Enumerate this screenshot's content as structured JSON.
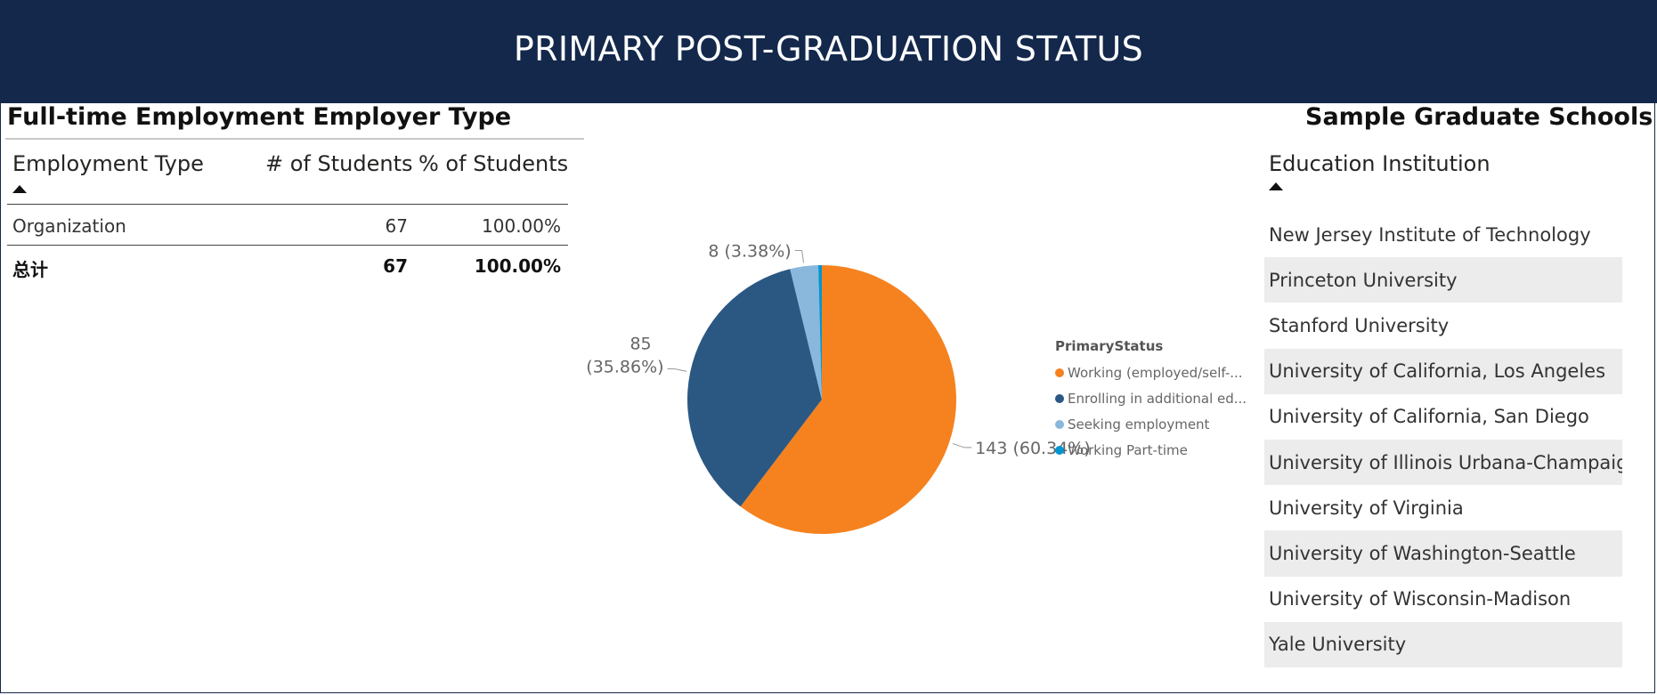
{
  "banner": {
    "title": "PRIMARY POST-GRADUATION STATUS"
  },
  "employer_table": {
    "title": "Full-time Employment Employer Type",
    "columns": [
      "Employment Type",
      "# of Students",
      "% of Students"
    ],
    "rows": [
      {
        "type": "Organization",
        "count": "67",
        "percent": "100.00%"
      }
    ],
    "total": {
      "label": "总计",
      "count": "67",
      "percent": "100.00%"
    }
  },
  "chart_data": {
    "type": "pie",
    "legend_title": "PrimaryStatus",
    "legend_position": "right",
    "slices": [
      {
        "name": "Working (employed/self-employed)",
        "legend_text": "Working (employed/self-...",
        "value": 143,
        "percent": 60.34,
        "label": "143 (60.34%)",
        "color": "#f5821f"
      },
      {
        "name": "Enrolling in additional education",
        "legend_text": "Enrolling in additional ed...",
        "value": 85,
        "percent": 35.86,
        "label_lines": [
          "85",
          "(35.86%)"
        ],
        "color": "#2b5783"
      },
      {
        "name": "Seeking employment",
        "legend_text": "Seeking employment",
        "value": 8,
        "percent": 3.38,
        "label": "8 (3.38%)",
        "color": "#8ab7dc"
      },
      {
        "name": "Working Part-time",
        "legend_text": "Working Part-time",
        "value": 1,
        "percent": 0.42,
        "label": "",
        "color": "#0096d0"
      }
    ]
  },
  "schools": {
    "title": "Sample Graduate Schools",
    "column": "Education Institution",
    "items": [
      "New Jersey Institute of Technology",
      "Princeton University",
      "Stanford University",
      "University of California, Los Angeles",
      "University of California, San Diego",
      "University of Illinois Urbana-Champaign",
      "University of Virginia",
      "University of Washington-Seattle",
      "University of Wisconsin-Madison",
      "Yale University"
    ]
  }
}
